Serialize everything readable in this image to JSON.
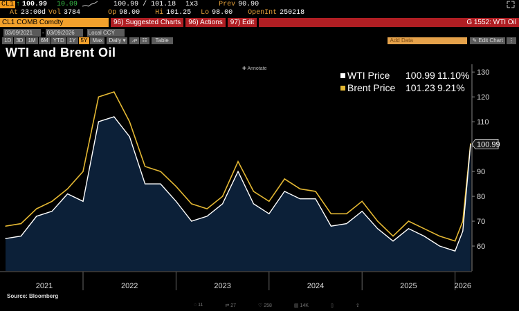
{
  "quote": {
    "ticker": "CL1",
    "arrow": "↑",
    "last": "100.99",
    "change": "10.09",
    "bid_ask": "100.99 / 101.18",
    "size": "1x3",
    "prev_label": "Prev",
    "prev": "90.90",
    "at_label": "At",
    "at": "23:00d",
    "vol_label": "Vol",
    "vol": "3784",
    "op_label": "Op",
    "op": "98.00",
    "hi_label": "Hi",
    "hi": "101.25",
    "lo_label": "Lo",
    "lo": "98.00",
    "oi_label": "OpenInt",
    "oi": "250218"
  },
  "toolbar": {
    "security": "CL1 COMB Comdty",
    "suggested": "96) Suggested Charts",
    "actions": "96) Actions",
    "edit": "97) Edit",
    "graph_id": "G 1552: WTI Oil",
    "start_date": "03/09/2021",
    "end_date": "03/09/2026",
    "currency": "Local CCY",
    "table": "Table",
    "add_data": "Add Data",
    "edit_chart": "Edit Chart",
    "periods": [
      "1D",
      "3D",
      "1M",
      "6M",
      "YTD",
      "1Y",
      "5Y",
      "Max"
    ],
    "selected_period": "5Y",
    "frequency": "Daily"
  },
  "annotate": "Annotate",
  "source": "Source: Bloomberg",
  "social": {
    "comments": "11",
    "reposts": "27",
    "likes": "258",
    "views": "14K"
  },
  "colors": {
    "wti": "#ffffff",
    "brent": "#e3b733",
    "area": "#0c2038",
    "accent": "#f3a12c",
    "bar": "#b01e23"
  },
  "chart_data": {
    "type": "line",
    "title": "WTI and Brent Oil",
    "xlabel": "",
    "ylabel": "",
    "x": [
      "2021-03",
      "2021-05",
      "2021-07",
      "2021-09",
      "2021-11",
      "2022-01",
      "2022-03",
      "2022-05",
      "2022-07",
      "2022-09",
      "2022-11",
      "2023-01",
      "2023-03",
      "2023-05",
      "2023-07",
      "2023-09",
      "2023-11",
      "2024-01",
      "2024-03",
      "2024-05",
      "2024-07",
      "2024-09",
      "2024-11",
      "2025-01",
      "2025-03",
      "2025-05",
      "2025-07",
      "2025-09",
      "2025-11",
      "2026-01",
      "2026-02",
      "2026-03"
    ],
    "series": [
      {
        "name": "WTI Price",
        "last": "100.99",
        "change": "11.10%",
        "color": "#ffffff",
        "values": [
          63,
          64,
          72,
          74,
          81,
          78,
          110,
          112,
          104,
          85,
          85,
          78,
          70,
          72,
          77,
          90,
          77,
          73,
          82,
          79,
          79,
          68,
          69,
          74,
          67,
          62,
          67,
          64,
          60,
          58,
          66,
          100.99
        ]
      },
      {
        "name": "Brent Price",
        "last": "101.23",
        "change": "9.21%",
        "color": "#e3b733",
        "values": [
          68,
          69,
          75,
          78,
          83,
          90,
          120,
          122,
          110,
          92,
          90,
          84,
          77,
          75,
          80,
          94,
          82,
          78,
          87,
          83,
          82,
          73,
          73,
          78,
          70,
          64,
          70,
          67,
          64,
          62,
          70,
          101.23
        ]
      }
    ],
    "x_ticks": [
      "2021",
      "2022",
      "2023",
      "2024",
      "2025",
      "2026"
    ],
    "y_ticks": [
      60,
      70,
      80,
      90,
      100,
      110,
      120,
      130
    ],
    "ylim": [
      50,
      132
    ],
    "last_value_label": "100.99",
    "legend": "top-right",
    "grid": false
  }
}
